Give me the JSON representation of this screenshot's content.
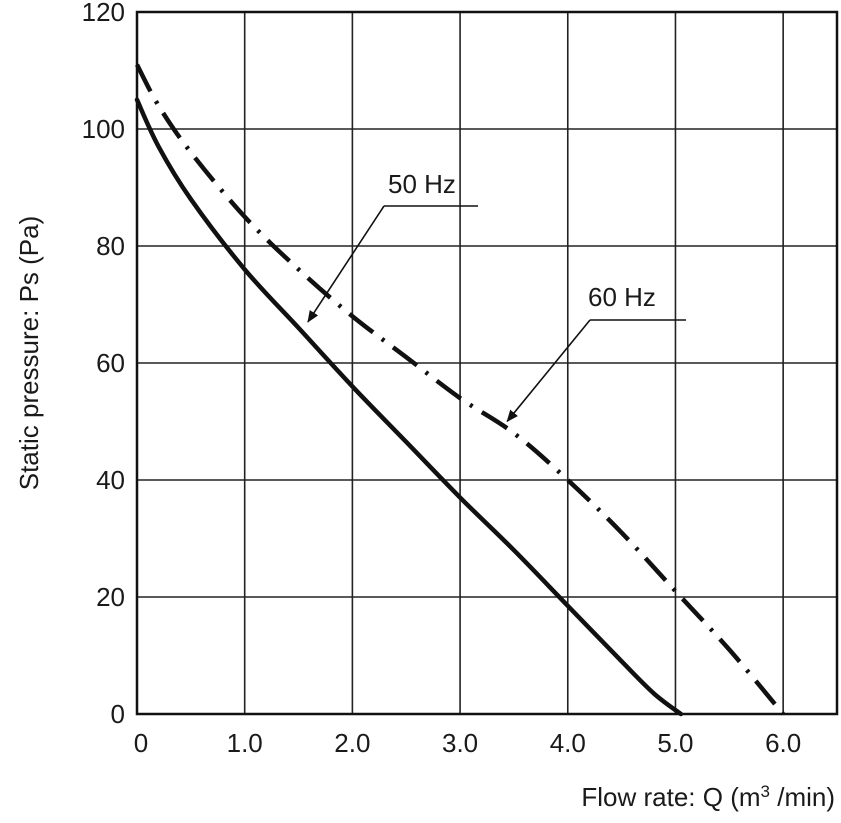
{
  "chart_data": {
    "type": "line",
    "xlabel_prefix": "Flow rate: Q (m",
    "xlabel_sup": "3",
    "xlabel_suffix": " /min)",
    "ylabel": "Static pressure: Ps (Pa)",
    "xlim": [
      0,
      6.5
    ],
    "ylim": [
      0,
      120
    ],
    "x_ticks": [
      0,
      1,
      2,
      3,
      4,
      5,
      6
    ],
    "x_tick_labels": [
      "0",
      "1.0",
      "2.0",
      "3.0",
      "4.0",
      "5.0",
      "6.0"
    ],
    "y_ticks": [
      0,
      20,
      40,
      60,
      80,
      100,
      120
    ],
    "y_tick_labels": [
      "0",
      "20",
      "40",
      "60",
      "80",
      "100",
      "120"
    ],
    "grid": true,
    "series": [
      {
        "name": "50 Hz",
        "style": "solid",
        "color": "#111111",
        "points": [
          [
            0,
            105
          ],
          [
            0.2,
            97
          ],
          [
            0.5,
            88
          ],
          [
            1.0,
            76
          ],
          [
            1.5,
            66
          ],
          [
            2.0,
            56
          ],
          [
            2.5,
            46.5
          ],
          [
            3.0,
            37
          ],
          [
            3.5,
            28
          ],
          [
            4.0,
            18.5
          ],
          [
            4.5,
            9
          ],
          [
            4.8,
            3.5
          ],
          [
            5.05,
            0
          ]
        ]
      },
      {
        "name": "60 Hz",
        "style": "dashdot",
        "color": "#111111",
        "points": [
          [
            0,
            111
          ],
          [
            0.2,
            104
          ],
          [
            0.5,
            96
          ],
          [
            1.0,
            85
          ],
          [
            1.5,
            76
          ],
          [
            2.0,
            68
          ],
          [
            2.5,
            61
          ],
          [
            3.0,
            54
          ],
          [
            3.5,
            48
          ],
          [
            4.0,
            40
          ],
          [
            4.5,
            31
          ],
          [
            5.0,
            21
          ],
          [
            5.5,
            11
          ],
          [
            6.0,
            0
          ]
        ]
      }
    ],
    "annotations": [
      {
        "text": "50 Hz",
        "series": "50 Hz",
        "point": [
          1.55,
          66
        ]
      },
      {
        "text": "60 Hz",
        "series": "60 Hz",
        "point": [
          3.4,
          49
        ]
      }
    ]
  }
}
